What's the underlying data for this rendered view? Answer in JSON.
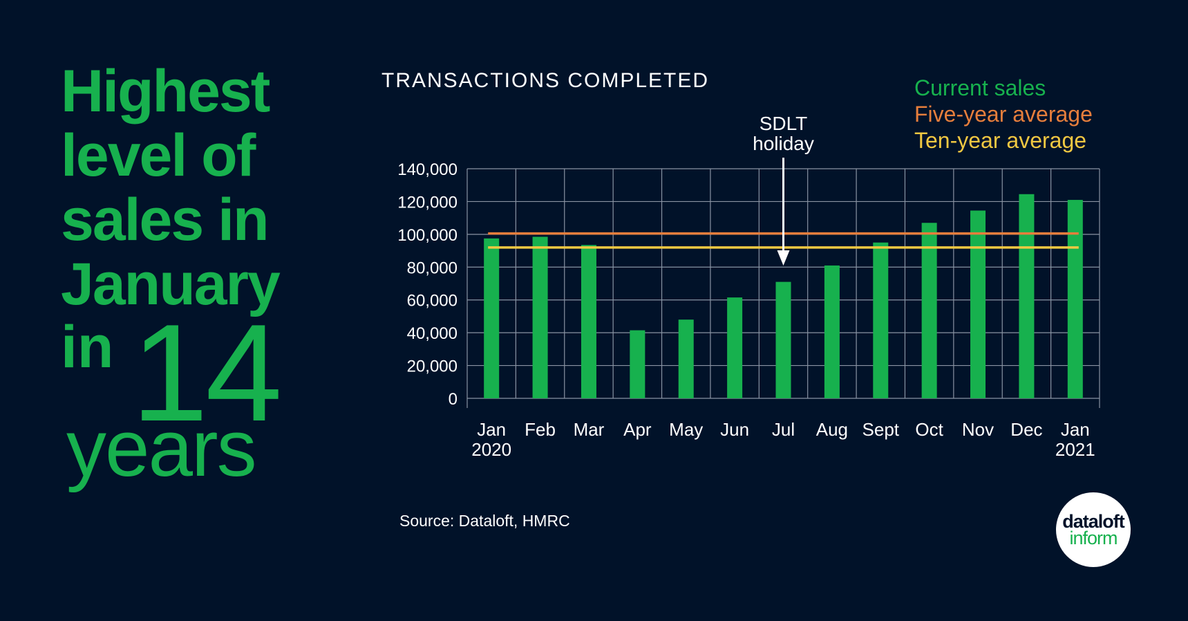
{
  "headline": {
    "lines": [
      "Highest",
      "level of",
      "sales in",
      "January"
    ],
    "in": "in",
    "number": "14",
    "years": "years"
  },
  "chart_title": "TRANSACTIONS COMPLETED",
  "legend": {
    "current": "Current sales",
    "five_year": "Five-year average",
    "ten_year": "Ten-year average"
  },
  "annotation": {
    "line1": "SDLT",
    "line2": "holiday"
  },
  "source": "Source: Dataloft, HMRC",
  "logo": {
    "line1": "dataloft",
    "line2": "inform"
  },
  "colors": {
    "background": "#011229",
    "bars": "#17b14e",
    "five_year": "#e67e3c",
    "ten_year": "#f1c842",
    "grid": "#8a93a3",
    "text": "#ffffff"
  },
  "chart_data": {
    "type": "bar",
    "title": "TRANSACTIONS COMPLETED",
    "categories": [
      "Jan 2020",
      "Feb",
      "Mar",
      "Apr",
      "May",
      "Jun",
      "Jul",
      "Aug",
      "Sept",
      "Oct",
      "Nov",
      "Dec",
      "Jan 2021"
    ],
    "category_labels": [
      [
        "Jan",
        "2020"
      ],
      [
        "Feb"
      ],
      [
        "Mar"
      ],
      [
        "Apr"
      ],
      [
        "May"
      ],
      [
        "Jun"
      ],
      [
        "Jul"
      ],
      [
        "Aug"
      ],
      [
        "Sept"
      ],
      [
        "Oct"
      ],
      [
        "Nov"
      ],
      [
        "Dec"
      ],
      [
        "Jan",
        "2021"
      ]
    ],
    "series": [
      {
        "name": "Current sales",
        "values": [
          97500,
          98500,
          93500,
          41500,
          48000,
          61500,
          71000,
          81000,
          95000,
          107000,
          114500,
          124500,
          121000
        ]
      }
    ],
    "reference_lines": [
      {
        "name": "Five-year average",
        "value": 100500
      },
      {
        "name": "Ten-year average",
        "value": 92000
      }
    ],
    "yticks": [
      "0",
      "20,000",
      "40,000",
      "60,000",
      "80,000",
      "100,000",
      "120,000",
      "140,000"
    ],
    "ylim": [
      0,
      140000
    ],
    "grid": true,
    "legend_position": "top-right",
    "annotation": {
      "text": "SDLT holiday",
      "category": "Jul"
    }
  }
}
